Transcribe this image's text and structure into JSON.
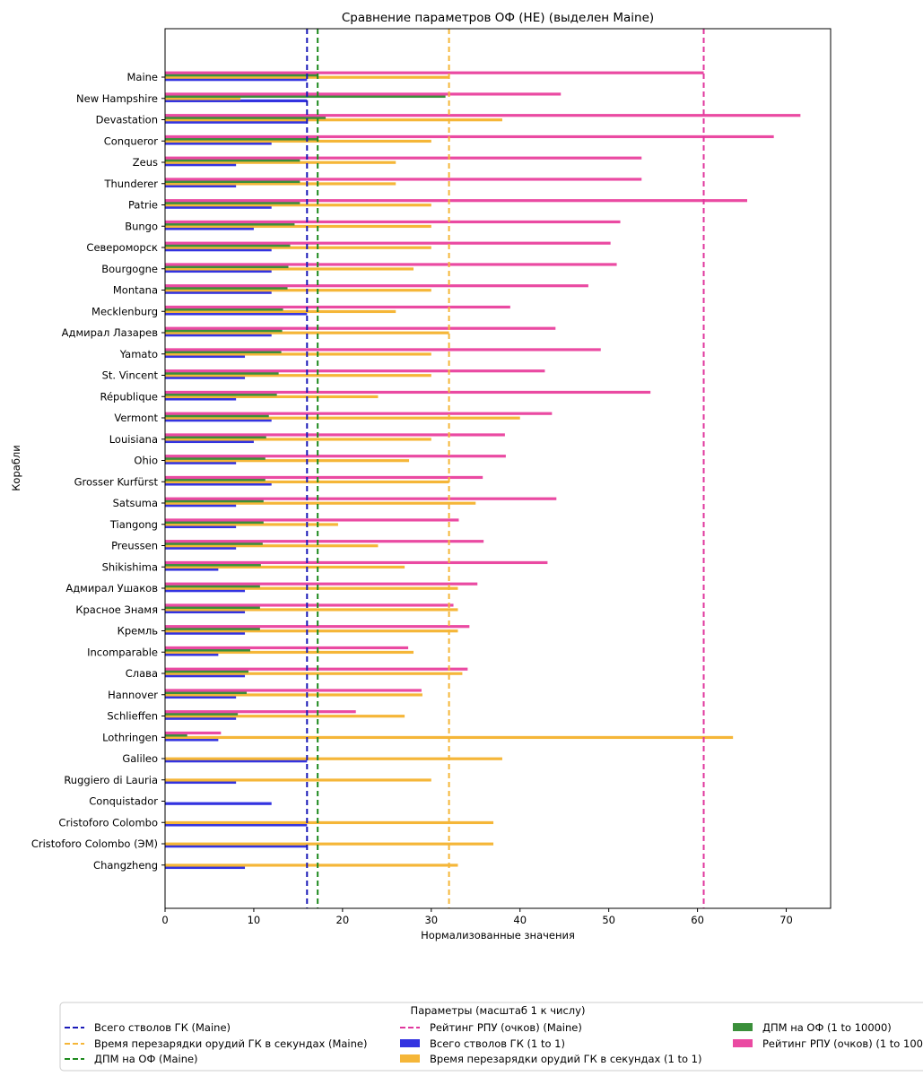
{
  "chart_data": {
    "type": "bar",
    "orientation": "horizontal",
    "title": "Сравнение параметров ОФ (НЕ) (выделен Maine)",
    "xlabel": "Нормализованные значения",
    "ylabel": "Корабли",
    "xlim": [
      0,
      75
    ],
    "xticks": [
      0,
      10,
      20,
      30,
      40,
      50,
      60,
      70
    ],
    "categories": [
      "Maine",
      "New Hampshire",
      "Devastation",
      "Conqueror",
      "Zeus",
      "Thunderer",
      "Patrie",
      "Bungo",
      "Североморск",
      "Bourgogne",
      "Montana",
      "Mecklenburg",
      "Адмирал Лазарев",
      "Yamato",
      "St. Vincent",
      "République",
      "Vermont",
      "Louisiana",
      "Ohio",
      "Grosser Kurfürst",
      "Satsuma",
      "Tiangong",
      "Preussen",
      "Shikishima",
      "Адмирал Ушаков",
      "Красное Знамя",
      "Кремль",
      "Incomparable",
      "Слава",
      "Hannover",
      "Schlieffen",
      "Lothringen",
      "Galileo",
      "Ruggiero di Lauria",
      "Conquistador",
      "Cristoforo Colombo",
      "Cristoforo Colombo (ЭМ)",
      "Changzheng"
    ],
    "series": [
      {
        "name": "Всего стволов ГК (1 to 1)",
        "color": "#3333e0",
        "values": [
          16,
          16,
          16,
          12,
          8,
          8,
          12,
          10,
          12,
          12,
          12,
          16,
          12,
          9,
          9,
          8,
          12,
          10,
          8,
          12,
          8,
          8,
          8,
          6,
          9,
          9,
          9,
          6,
          9,
          8,
          8,
          6,
          16,
          8,
          12,
          16,
          16,
          9
        ]
      },
      {
        "name": "Время перезарядки орудий ГК в секундах (1 to 1)",
        "color": "#f5b638",
        "values": [
          32,
          8.5,
          38,
          30,
          26,
          26,
          30,
          30,
          30,
          28,
          30,
          26,
          32,
          30,
          30,
          24,
          40,
          30,
          27.5,
          32,
          35,
          19.5,
          24,
          27,
          33,
          33,
          33,
          28,
          33.5,
          29,
          27,
          64,
          38,
          30,
          0,
          37,
          37,
          33
        ]
      },
      {
        "name": "ДПМ на ОФ (1 to 10000)",
        "color": "#3a8f3a",
        "values": [
          17.2,
          31.6,
          18.1,
          17.2,
          15.2,
          15.2,
          15.2,
          14.6,
          14.1,
          13.9,
          13.8,
          13.3,
          13.2,
          13.1,
          12.8,
          12.6,
          11.7,
          11.4,
          11.3,
          11.3,
          11.1,
          11.1,
          11.0,
          10.8,
          10.7,
          10.7,
          10.7,
          9.6,
          9.4,
          9.2,
          8.2,
          2.5,
          0,
          0,
          0,
          0,
          0,
          0
        ]
      },
      {
        "name": "Рейтинг РПУ (очков) (1 to 100)",
        "color": "#ea4aa2",
        "values": [
          60.7,
          44.6,
          71.6,
          68.6,
          53.7,
          53.7,
          65.6,
          51.3,
          50.2,
          50.9,
          47.7,
          38.9,
          44.0,
          49.1,
          42.8,
          54.7,
          43.6,
          38.3,
          38.4,
          35.8,
          44.1,
          33.1,
          35.9,
          43.1,
          35.2,
          32.5,
          34.3,
          27.4,
          34.1,
          28.9,
          21.5,
          6.3,
          0,
          0,
          0,
          0,
          0,
          0
        ]
      }
    ],
    "reference_lines": [
      {
        "name": "Всего стволов ГК (Maine)",
        "value": 16,
        "color": "#1a1ab8"
      },
      {
        "name": "Время перезарядки орудий ГК в секундах (Maine)",
        "value": 32,
        "color": "#f5b638"
      },
      {
        "name": "ДПМ на ОФ (Maine)",
        "value": 17.2,
        "color": "#1e8a1e"
      },
      {
        "name": "Рейтинг РПУ (очков) (Maine)",
        "value": 60.7,
        "color": "#e0379d"
      }
    ],
    "legend": {
      "title": "Параметры (масштаб 1 к числу)",
      "placement": "bottom",
      "entries": [
        "Всего стволов ГК (Maine)",
        "Время перезарядки орудий ГК в секундах (Maine)",
        "ДПМ на ОФ (Maine)",
        "Рейтинг РПУ (очков) (Maine)",
        "Всего стволов ГК (1 to 1)",
        "Время перезарядки орудий ГК в секундах (1 to 1)",
        "ДПМ на ОФ (1 to 10000)",
        "Рейтинг РПУ (очков) (1 to 100)"
      ]
    }
  }
}
